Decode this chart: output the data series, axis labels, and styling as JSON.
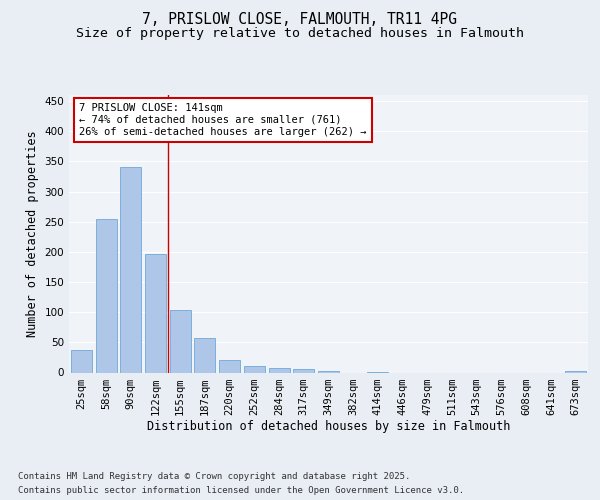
{
  "title_line1": "7, PRISLOW CLOSE, FALMOUTH, TR11 4PG",
  "title_line2": "Size of property relative to detached houses in Falmouth",
  "xlabel": "Distribution of detached houses by size in Falmouth",
  "ylabel": "Number of detached properties",
  "categories": [
    "25sqm",
    "58sqm",
    "90sqm",
    "122sqm",
    "155sqm",
    "187sqm",
    "220sqm",
    "252sqm",
    "284sqm",
    "317sqm",
    "349sqm",
    "382sqm",
    "414sqm",
    "446sqm",
    "479sqm",
    "511sqm",
    "543sqm",
    "576sqm",
    "608sqm",
    "641sqm",
    "673sqm"
  ],
  "values": [
    37,
    255,
    340,
    197,
    104,
    57,
    20,
    11,
    8,
    5,
    3,
    0,
    1,
    0,
    0,
    0,
    0,
    0,
    0,
    0,
    2
  ],
  "bar_color": "#aec6e8",
  "bar_edge_color": "#5a9fd4",
  "vline_x_index": 3.5,
  "vline_color": "#cc0000",
  "annotation_line1": "7 PRISLOW CLOSE: 141sqm",
  "annotation_line2": "← 74% of detached houses are smaller (761)",
  "annotation_line3": "26% of semi-detached houses are larger (262) →",
  "annotation_box_color": "#ffffff",
  "annotation_box_edge_color": "#cc0000",
  "ylim": [
    0,
    460
  ],
  "yticks": [
    0,
    50,
    100,
    150,
    200,
    250,
    300,
    350,
    400,
    450
  ],
  "bg_color": "#e8eef4",
  "plot_bg_color": "#f0f4f8",
  "grid_color": "#ffffff",
  "footer_line1": "Contains HM Land Registry data © Crown copyright and database right 2025.",
  "footer_line2": "Contains public sector information licensed under the Open Government Licence v3.0.",
  "title_fontsize": 10.5,
  "subtitle_fontsize": 9.5,
  "axis_label_fontsize": 8.5,
  "tick_fontsize": 7.5,
  "annotation_fontsize": 7.5,
  "footer_fontsize": 6.5
}
